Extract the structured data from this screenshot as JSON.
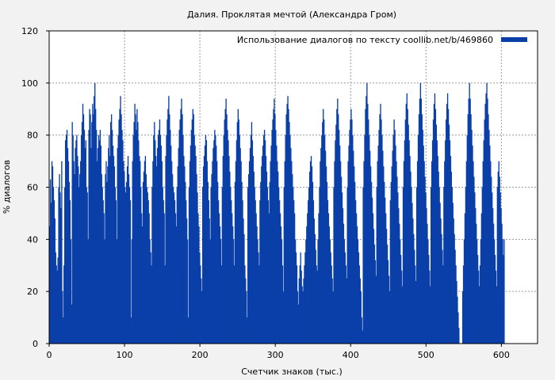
{
  "chart_data": {
    "type": "bar",
    "title": "Далия. Проклятая мечтой (Александра Гром)",
    "xlabel": "Счетчик знаков (тыс.)",
    "ylabel": "% диалогов",
    "xlim": [
      0,
      648
    ],
    "ylim": [
      0,
      120
    ],
    "x_ticks": [
      "0",
      "100",
      "200",
      "300",
      "400",
      "500",
      "600"
    ],
    "y_ticks": [
      "0",
      "20",
      "40",
      "60",
      "80",
      "100",
      "120"
    ],
    "grid": true,
    "legend_position": "top-right",
    "series": [
      {
        "name": "Использование диалогов по тексту  coollib.net/b/469860",
        "color": "#0a3fa8",
        "x_step": 1,
        "values": [
          45,
          63,
          54,
          70,
          68,
          60,
          55,
          48,
          35,
          30,
          28,
          33,
          60,
          65,
          58,
          52,
          70,
          20,
          10,
          30,
          60,
          78,
          80,
          82,
          75,
          70,
          62,
          55,
          40,
          15,
          85,
          80,
          70,
          65,
          75,
          78,
          80,
          72,
          68,
          60,
          65,
          70,
          80,
          85,
          92,
          88,
          82,
          75,
          78,
          60,
          58,
          40,
          82,
          90,
          88,
          75,
          85,
          92,
          88,
          95,
          100,
          90,
          82,
          70,
          75,
          80,
          78,
          82,
          76,
          65,
          60,
          55,
          50,
          40,
          65,
          70,
          62,
          68,
          75,
          80,
          72,
          85,
          88,
          82,
          76,
          72,
          68,
          60,
          55,
          40,
          75,
          80,
          86,
          90,
          95,
          88,
          82,
          78,
          70,
          66,
          60,
          58,
          62,
          68,
          72,
          65,
          60,
          55,
          10,
          40,
          70,
          80,
          85,
          92,
          88,
          82,
          90,
          85,
          78,
          72,
          70,
          60,
          50,
          45,
          62,
          66,
          70,
          72,
          65,
          60,
          58,
          55,
          50,
          40,
          35,
          30,
          60,
          70,
          80,
          85,
          78,
          72,
          68,
          75,
          80,
          82,
          86,
          80,
          76,
          70,
          60,
          55,
          50,
          30,
          72,
          80,
          86,
          90,
          95,
          88,
          82,
          76,
          70,
          65,
          60,
          58,
          55,
          50,
          45,
          60,
          68,
          75,
          82,
          86,
          90,
          94,
          88,
          80,
          72,
          68,
          62,
          55,
          48,
          40,
          10,
          60,
          70,
          76,
          82,
          86,
          90,
          88,
          80,
          76,
          72,
          65,
          58,
          50,
          45,
          35,
          30,
          25,
          20,
          60,
          68,
          72,
          76,
          80,
          78,
          70,
          62,
          55,
          48,
          40,
          60,
          65,
          70,
          75,
          78,
          82,
          80,
          76,
          70,
          62,
          55,
          50,
          45,
          40,
          30,
          60,
          72,
          80,
          86,
          90,
          94,
          88,
          82,
          78,
          72,
          66,
          60,
          55,
          50,
          45,
          40,
          30,
          62,
          70,
          78,
          85,
          90,
          86,
          80,
          75,
          70,
          62,
          55,
          48,
          42,
          30,
          25,
          20,
          10,
          60,
          65,
          70,
          75,
          80,
          85,
          78,
          72,
          66,
          60,
          55,
          50,
          45,
          40,
          35,
          30,
          55,
          62,
          68,
          72,
          76,
          80,
          82,
          78,
          72,
          66,
          60,
          55,
          50,
          62,
          70,
          76,
          82,
          86,
          90,
          94,
          88,
          82,
          76,
          70,
          66,
          60,
          55,
          50,
          45,
          40,
          30,
          20,
          60,
          70,
          80,
          88,
          92,
          95,
          90,
          85,
          80,
          75,
          70,
          65,
          60,
          55,
          50,
          40,
          35,
          30,
          20,
          15,
          25,
          30,
          35,
          28,
          22,
          20,
          25,
          30,
          35,
          40,
          45,
          50,
          55,
          60,
          66,
          70,
          72,
          68,
          62,
          55,
          48,
          42,
          36,
          30,
          28,
          40,
          50,
          60,
          70,
          75,
          80,
          85,
          90,
          86,
          80,
          74,
          68,
          62,
          55,
          50,
          45,
          40,
          35,
          30,
          25,
          20,
          60,
          70,
          78,
          84,
          90,
          94,
          88,
          82,
          76,
          70,
          64,
          58,
          52,
          46,
          40,
          35,
          30,
          25,
          60,
          70,
          76,
          82,
          86,
          90,
          86,
          80,
          74,
          68,
          62,
          55,
          50,
          45,
          40,
          35,
          30,
          25,
          20,
          10,
          5,
          60,
          70,
          80,
          90,
          95,
          100,
          92,
          86,
          80,
          74,
          68,
          62,
          56,
          50,
          44,
          38,
          32,
          26,
          60,
          70,
          76,
          82,
          88,
          92,
          86,
          80,
          74,
          68,
          62,
          56,
          50,
          44,
          38,
          32,
          26,
          20,
          55,
          62,
          68,
          74,
          80,
          86,
          82,
          76,
          70,
          64,
          58,
          52,
          46,
          40,
          34,
          28,
          22,
          60,
          70,
          78,
          86,
          92,
          96,
          90,
          84,
          78,
          72,
          66,
          60,
          54,
          48,
          42,
          36,
          30,
          24,
          60,
          70,
          80,
          88,
          94,
          100,
          94,
          88,
          82,
          76,
          70,
          64,
          58,
          52,
          46,
          40,
          34,
          28,
          22,
          60,
          70,
          78,
          86,
          92,
          96,
          90,
          84,
          78,
          72,
          66,
          60,
          54,
          48,
          42,
          36,
          30,
          60,
          70,
          78,
          86,
          92,
          96,
          90,
          84,
          78,
          72,
          66,
          60,
          54,
          48,
          42,
          36,
          30,
          24,
          18,
          12,
          6,
          0,
          0,
          0,
          0,
          20,
          30,
          40,
          50,
          60,
          70,
          80,
          88,
          94,
          100,
          94,
          88,
          82,
          76,
          70,
          64,
          58,
          52,
          46,
          40,
          34,
          28,
          22,
          30,
          40,
          50,
          60,
          70,
          78,
          86,
          92,
          96,
          100,
          94,
          88,
          82,
          76,
          70,
          64,
          58,
          52,
          46,
          40,
          34,
          28,
          22,
          60,
          66,
          70,
          64,
          58,
          52,
          46,
          40,
          34,
          40
        ]
      }
    ]
  }
}
